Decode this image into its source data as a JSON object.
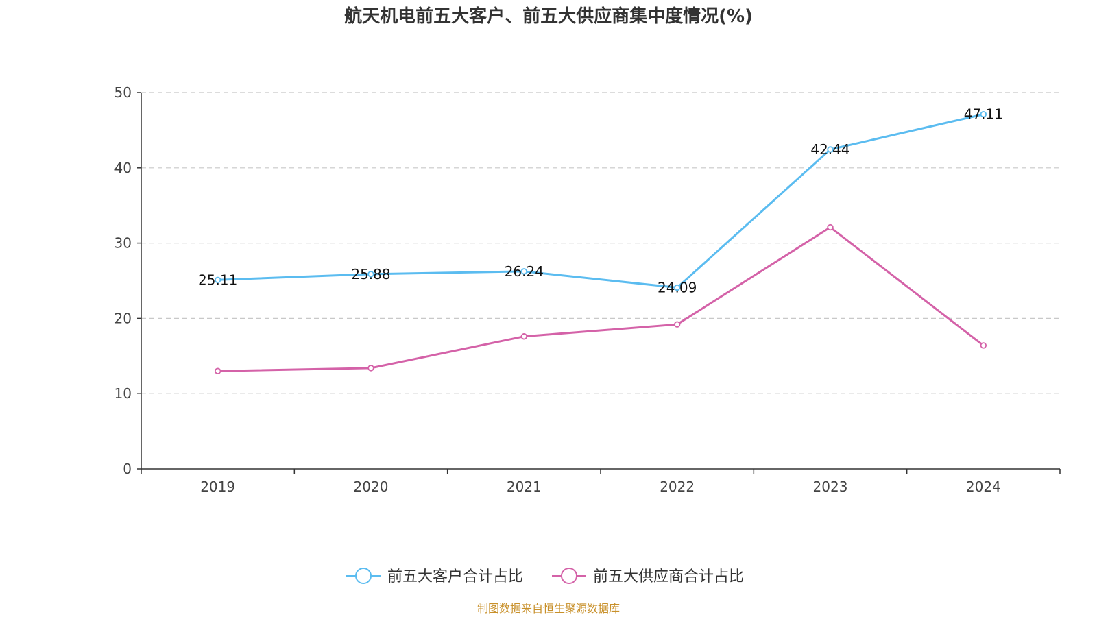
{
  "chart_data": {
    "type": "line",
    "title": "航天机电前五大客户、前五大供应商集中度情况(%)",
    "categories": [
      "2019",
      "2020",
      "2021",
      "2022",
      "2023",
      "2024"
    ],
    "ylim": [
      0,
      50
    ],
    "yticks": [
      0,
      10,
      20,
      30,
      40,
      50
    ],
    "grid": true,
    "legend_position": "bottom-center",
    "series": [
      {
        "name": "前五大客户合计占比",
        "color": "#5bbcf0",
        "values": [
          25.11,
          25.88,
          26.24,
          24.09,
          42.44,
          47.11
        ],
        "data_labels": [
          "25.11",
          "25.88",
          "26.24",
          "24.09",
          "42.44",
          "47.11"
        ]
      },
      {
        "name": "前五大供应商合计占比",
        "color": "#d462a8",
        "values": [
          13.0,
          13.4,
          17.6,
          19.2,
          32.1,
          16.4
        ],
        "data_labels": []
      }
    ],
    "source_note": "制图数据来自恒生聚源数据库"
  }
}
